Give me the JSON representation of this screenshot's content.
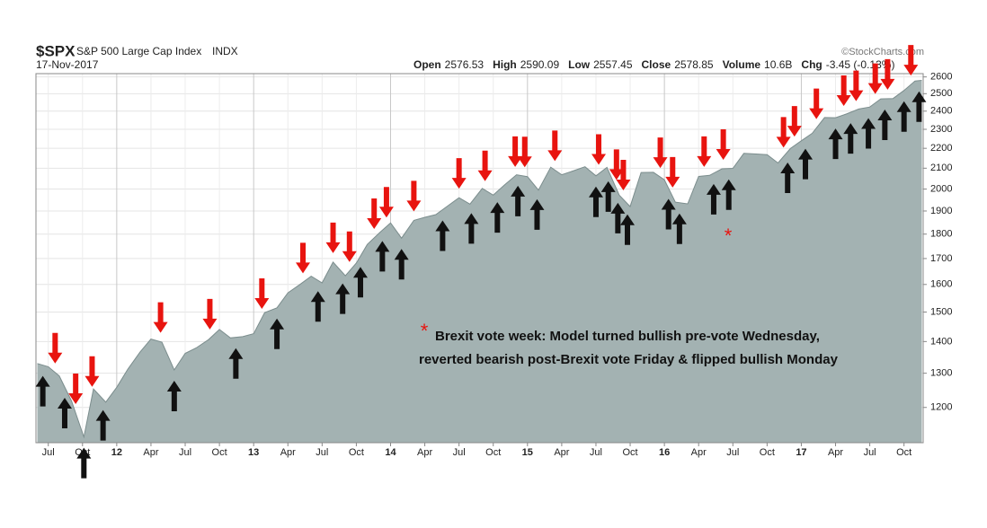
{
  "header": {
    "symbol": "$SPX",
    "name": "S&P 500 Large Cap Index",
    "exchange": "INDX",
    "date": "17-Nov-2017",
    "source": "©StockCharts.com",
    "stats": [
      {
        "label": "Open",
        "value": "2576.53"
      },
      {
        "label": "High",
        "value": "2590.09"
      },
      {
        "label": "Low",
        "value": "2557.45"
      },
      {
        "label": "Close",
        "value": "2578.85"
      },
      {
        "label": "Volume",
        "value": "10.6B"
      },
      {
        "label": "Chg",
        "value": "-3.45 (-0.13%)"
      }
    ]
  },
  "chart_data": {
    "type": "area",
    "log_scale": true,
    "grid": true,
    "color": "#a3b2b2",
    "line_color": "#7b8d8d",
    "x": [
      2011.42,
      2011.5,
      2011.58,
      2011.67,
      2011.76,
      2011.83,
      2011.92,
      2012.0,
      2012.08,
      2012.17,
      2012.25,
      2012.33,
      2012.42,
      2012.5,
      2012.58,
      2012.67,
      2012.75,
      2012.83,
      2012.92,
      2013.0,
      2013.08,
      2013.17,
      2013.25,
      2013.33,
      2013.42,
      2013.5,
      2013.58,
      2013.67,
      2013.75,
      2013.83,
      2013.92,
      2014.0,
      2014.08,
      2014.17,
      2014.25,
      2014.33,
      2014.42,
      2014.5,
      2014.58,
      2014.67,
      2014.75,
      2014.83,
      2014.92,
      2015.0,
      2015.08,
      2015.17,
      2015.25,
      2015.33,
      2015.42,
      2015.5,
      2015.58,
      2015.67,
      2015.75,
      2015.83,
      2015.92,
      2016.0,
      2016.08,
      2016.17,
      2016.25,
      2016.33,
      2016.42,
      2016.5,
      2016.58,
      2016.67,
      2016.75,
      2016.83,
      2016.92,
      2017.0,
      2017.08,
      2017.17,
      2017.25,
      2017.33,
      2017.42,
      2017.5,
      2017.58,
      2017.67,
      2017.75,
      2017.83,
      2017.88
    ],
    "values": [
      1330,
      1320,
      1292,
      1218,
      1120,
      1253,
      1215,
      1258,
      1312,
      1366,
      1408,
      1398,
      1310,
      1362,
      1379,
      1406,
      1440,
      1412,
      1416,
      1426,
      1498,
      1515,
      1569,
      1597,
      1631,
      1606,
      1686,
      1633,
      1682,
      1757,
      1806,
      1848,
      1783,
      1859,
      1872,
      1884,
      1924,
      1960,
      1931,
      2003,
      1972,
      2018,
      2068,
      2059,
      1995,
      2105,
      2068,
      2086,
      2107,
      2063,
      2104,
      1972,
      1920,
      2079,
      2080,
      2044,
      1940,
      1932,
      2060,
      2065,
      2097,
      2099,
      2174,
      2171,
      2168,
      2126,
      2199,
      2239,
      2279,
      2364,
      2363,
      2384,
      2412,
      2423,
      2470,
      2472,
      2519,
      2575,
      2579
    ],
    "xlim": [
      2011.41,
      2017.89
    ],
    "ylim": [
      1105,
      2620
    ],
    "xticks": [
      {
        "value": 2011.5,
        "label": "Jul"
      },
      {
        "value": 2011.75,
        "label": "Oct"
      },
      {
        "value": 2012,
        "label": "12"
      },
      {
        "value": 2012.25,
        "label": "Apr"
      },
      {
        "value": 2012.5,
        "label": "Jul"
      },
      {
        "value": 2012.75,
        "label": "Oct"
      },
      {
        "value": 2013,
        "label": "13"
      },
      {
        "value": 2013.25,
        "label": "Apr"
      },
      {
        "value": 2013.5,
        "label": "Jul"
      },
      {
        "value": 2013.75,
        "label": "Oct"
      },
      {
        "value": 2014,
        "label": "14"
      },
      {
        "value": 2014.25,
        "label": "Apr"
      },
      {
        "value": 2014.5,
        "label": "Jul"
      },
      {
        "value": 2014.75,
        "label": "Oct"
      },
      {
        "value": 2015,
        "label": "15"
      },
      {
        "value": 2015.25,
        "label": "Apr"
      },
      {
        "value": 2015.5,
        "label": "Jul"
      },
      {
        "value": 2015.75,
        "label": "Oct"
      },
      {
        "value": 2016,
        "label": "16"
      },
      {
        "value": 2016.25,
        "label": "Apr"
      },
      {
        "value": 2016.5,
        "label": "Jul"
      },
      {
        "value": 2016.75,
        "label": "Oct"
      },
      {
        "value": 2017,
        "label": "17"
      },
      {
        "value": 2017.25,
        "label": "Apr"
      },
      {
        "value": 2017.5,
        "label": "Jul"
      },
      {
        "value": 2017.75,
        "label": "Oct"
      }
    ],
    "yticks": [
      1200,
      1300,
      1400,
      1500,
      1600,
      1700,
      1800,
      1900,
      2000,
      2100,
      2200,
      2300,
      2400,
      2500,
      2600
    ],
    "bearish_color": "#e8140f",
    "bullish_color": "#111111",
    "bearish_signals": [
      2011.55,
      2011.7,
      2011.82,
      2012.32,
      2012.68,
      2013.06,
      2013.36,
      2013.58,
      2013.7,
      2013.88,
      2013.97,
      2014.17,
      2014.5,
      2014.69,
      2014.91,
      2014.98,
      2015.2,
      2015.52,
      2015.65,
      2015.7,
      2015.97,
      2016.06,
      2016.29,
      2016.43,
      2016.87,
      2016.95,
      2017.11,
      2017.31,
      2017.4,
      2017.54,
      2017.63,
      2017.8
    ],
    "bullish_signals": [
      2011.46,
      2011.62,
      2011.76,
      2011.9,
      2012.42,
      2012.87,
      2013.17,
      2013.47,
      2013.65,
      2013.78,
      2013.94,
      2014.08,
      2014.38,
      2014.59,
      2014.78,
      2014.93,
      2015.07,
      2015.5,
      2015.59,
      2015.66,
      2015.73,
      2016.03,
      2016.11,
      2016.36,
      2016.47,
      2016.9,
      2017.03,
      2017.25,
      2017.36,
      2017.49,
      2017.61,
      2017.75,
      2017.86
    ],
    "annotation": {
      "marker": "*",
      "lines": [
        "Brexit vote week: Model turned bullish pre-vote Wednesday,",
        "reverted bearish post-Brexit vote Friday & flipped bullish Monday"
      ]
    }
  }
}
